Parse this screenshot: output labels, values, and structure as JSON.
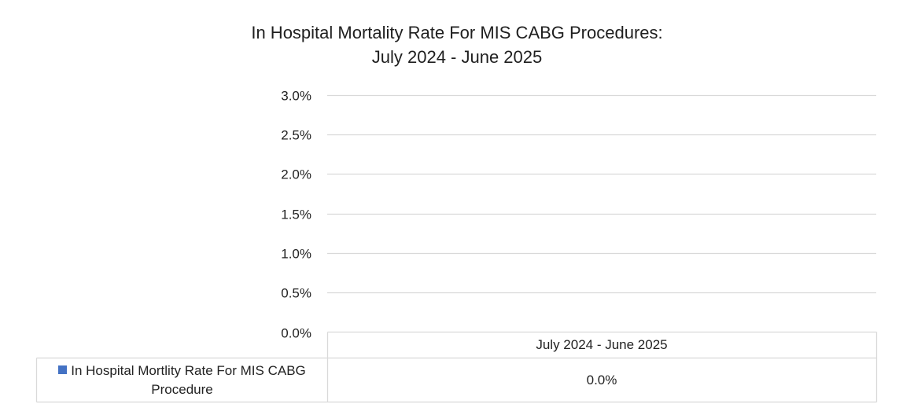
{
  "chart_data": {
    "type": "bar",
    "title": "In Hospital Mortality Rate For MIS CABG Procedures:",
    "subtitle": "July 2024 - June 2025",
    "categories": [
      "July 2024 - June 2025"
    ],
    "series": [
      {
        "name": "In Hospital Mortlity Rate For MIS CABG Procedure",
        "values": [
          0.0
        ],
        "color": "#4472C4",
        "labels": [
          "0.0%"
        ]
      }
    ],
    "ylim": [
      0,
      3.0
    ],
    "yticks": [
      0.0,
      0.5,
      1.0,
      1.5,
      2.0,
      2.5,
      3.0
    ],
    "ytick_labels": [
      "0.0%",
      "0.5%",
      "1.0%",
      "1.5%",
      "2.0%",
      "2.5%",
      "3.0%"
    ],
    "xlabel": "",
    "ylabel": "",
    "grid": true,
    "legend": "data-table-bottom",
    "gridline_color": "#d9d9d9"
  }
}
